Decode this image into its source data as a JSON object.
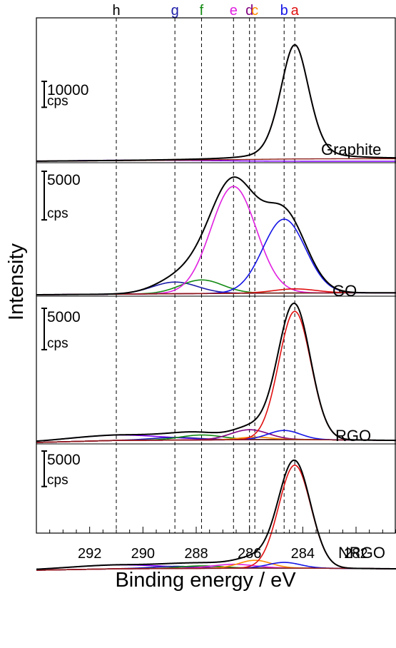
{
  "chart_data": {
    "type": "line",
    "xlabel": "Binding energy / eV",
    "ylabel": "Intensity",
    "xlim": [
      294,
      280.5
    ],
    "x_reversed": true,
    "x_ticks": [
      292,
      290,
      288,
      286,
      284,
      282
    ],
    "reference_lines": [
      {
        "label": "h",
        "x": 291.0,
        "color": "#000000"
      },
      {
        "label": "g",
        "x": 288.8,
        "color": "#1c1ca8"
      },
      {
        "label": "f",
        "x": 287.8,
        "color": "#128a12"
      },
      {
        "label": "e",
        "x": 286.6,
        "color": "#e020e0"
      },
      {
        "label": "d",
        "x": 286.0,
        "color": "#800080"
      },
      {
        "label": "c",
        "x": 285.8,
        "color": "#ff8c00"
      },
      {
        "label": "b",
        "x": 284.7,
        "color": "#1414e6"
      },
      {
        "label": "a",
        "x": 284.3,
        "color": "#e01010"
      }
    ],
    "panels": [
      {
        "name": "Graphite",
        "scale_label": [
          "10000",
          "cps"
        ],
        "scale_value": 10000,
        "ymax": 49000,
        "background": [
          {
            "x": 294,
            "y": 0
          },
          {
            "x": 290,
            "y": 300
          },
          {
            "x": 286,
            "y": 700
          },
          {
            "x": 284.3,
            "y": 900
          },
          {
            "x": 282,
            "y": 1000
          },
          {
            "x": 280.5,
            "y": 1000
          }
        ],
        "components": [
          {
            "label": "a",
            "color": "#e01010",
            "center": 284.3,
            "height": 44000,
            "width": 0.55
          }
        ],
        "extra_components": [
          {
            "color": "#8000ff",
            "points": [
              [
                294,
                0
              ],
              [
                292,
                350
              ],
              [
                290,
                450
              ],
              [
                288,
                300
              ],
              [
                286,
                100
              ],
              [
                284,
                0
              ],
              [
                280.5,
                0
              ]
            ]
          }
        ],
        "envelope_color": "#000000"
      },
      {
        "name": "GO",
        "scale_label": [
          "5000",
          "cps"
        ],
        "scale_value": 5000,
        "ymax": 13000,
        "background": [
          {
            "x": 294,
            "y": 0
          },
          {
            "x": 288,
            "y": 120
          },
          {
            "x": 284.5,
            "y": 180
          },
          {
            "x": 282,
            "y": 200
          },
          {
            "x": 280.5,
            "y": 200
          }
        ],
        "components": [
          {
            "label": "g",
            "color": "#1c1ca8",
            "center": 288.8,
            "height": 1200,
            "width": 0.85
          },
          {
            "label": "f",
            "color": "#128a12",
            "center": 287.8,
            "height": 1400,
            "width": 0.8
          },
          {
            "label": "e",
            "color": "#e020e0",
            "center": 286.6,
            "height": 11000,
            "width": 0.85
          },
          {
            "label": "b",
            "color": "#1414e6",
            "center": 284.7,
            "height": 7600,
            "width": 0.8
          },
          {
            "label": "a",
            "color": "#e01010",
            "center": 284.3,
            "height": 420,
            "width": 0.8
          }
        ],
        "extra_components": [],
        "envelope_color": "#000000"
      },
      {
        "name": "RGO",
        "scale_label": [
          "5000",
          "cps"
        ],
        "scale_value": 5000,
        "ymax": 17000,
        "background": [
          {
            "x": 294,
            "y": 0
          },
          {
            "x": 291,
            "y": 250
          },
          {
            "x": 288,
            "y": 300
          },
          {
            "x": 285.5,
            "y": 350
          },
          {
            "x": 284,
            "y": 350
          },
          {
            "x": 282,
            "y": 300
          },
          {
            "x": 280.5,
            "y": 250
          }
        ],
        "components": [
          {
            "label": "h",
            "color": "#8000ff",
            "center": 291.0,
            "height": 650,
            "width": 1.8
          },
          {
            "label": "g",
            "color": "#1c1ca8",
            "center": 288.8,
            "height": 320,
            "width": 0.9
          },
          {
            "label": "f",
            "color": "#128a12",
            "center": 287.8,
            "height": 600,
            "width": 0.8
          },
          {
            "label": "d",
            "color": "#800080",
            "center": 286.0,
            "height": 1200,
            "width": 0.7
          },
          {
            "label": "c",
            "color": "#ff8c00",
            "center": 285.8,
            "height": 300,
            "width": 0.6
          },
          {
            "label": "b",
            "color": "#1414e6",
            "center": 284.7,
            "height": 1100,
            "width": 0.6
          },
          {
            "label": "a",
            "color": "#e01010",
            "center": 284.3,
            "height": 15500,
            "width": 0.6
          }
        ],
        "extra_components": [],
        "envelope_color": "#000000"
      },
      {
        "name": "NRGO",
        "scale_label": [
          "5000",
          "cps"
        ],
        "scale_value": 5000,
        "ymax": 17000,
        "background": [
          {
            "x": 294,
            "y": 0
          },
          {
            "x": 291,
            "y": 200
          },
          {
            "x": 288,
            "y": 260
          },
          {
            "x": 285.5,
            "y": 300
          },
          {
            "x": 284,
            "y": 300
          },
          {
            "x": 282,
            "y": 250
          },
          {
            "x": 280.5,
            "y": 200
          }
        ],
        "components": [
          {
            "label": "h",
            "color": "#8000ff",
            "center": 291.0,
            "height": 550,
            "width": 1.8
          },
          {
            "label": "g",
            "color": "#1c1ca8",
            "center": 288.8,
            "height": 300,
            "width": 0.9
          },
          {
            "label": "f",
            "color": "#128a12",
            "center": 287.8,
            "height": 350,
            "width": 0.8
          },
          {
            "label": "e",
            "color": "#e020e0",
            "center": 286.6,
            "height": 550,
            "width": 0.8
          },
          {
            "label": "c",
            "color": "#ff8c00",
            "center": 285.8,
            "height": 1100,
            "width": 0.6
          },
          {
            "label": "b",
            "color": "#1414e6",
            "center": 284.7,
            "height": 800,
            "width": 0.6
          },
          {
            "label": "a",
            "color": "#e01010",
            "center": 284.3,
            "height": 14500,
            "width": 0.6
          }
        ],
        "extra_components": [],
        "envelope_color": "#000000"
      }
    ]
  }
}
